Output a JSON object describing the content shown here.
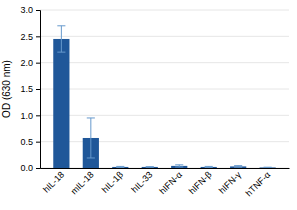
{
  "chart_data": {
    "type": "bar",
    "categories": [
      "hIL-18",
      "mIL-18",
      "hIL-1β",
      "hIL-33",
      "hIFN-α",
      "hIFN-β",
      "hIFN-γ",
      "hTNF-α"
    ],
    "values": [
      2.45,
      0.57,
      0.02,
      0.02,
      0.04,
      0.02,
      0.03,
      0.01
    ],
    "errors": [
      0.25,
      0.38,
      0.01,
      0.005,
      0.02,
      0.01,
      0.015,
      0.005
    ],
    "color": "#1f5799",
    "ylabel": "OD (630 nm)",
    "ylim": [
      0,
      3.0
    ],
    "yticks": [
      {
        "value": 0,
        "label": "0.0"
      },
      0.5,
      {
        "value": 1,
        "label": "1.0"
      },
      1.5,
      {
        "value": 2,
        "label": "2.0"
      },
      2.5,
      {
        "value": 3,
        "label": "3.0"
      }
    ],
    "grid": true
  }
}
